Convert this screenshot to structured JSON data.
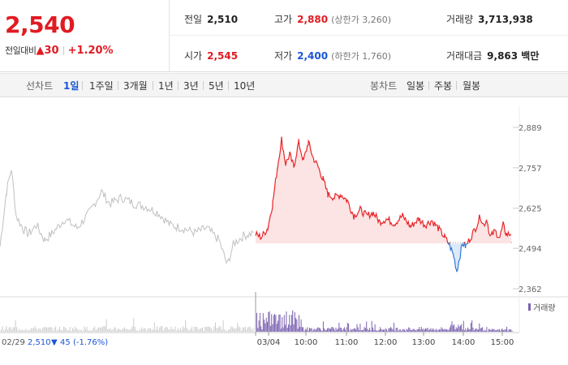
{
  "quote": {
    "current_price": "2,540",
    "change_label": "전일대비",
    "change_arrow": "▲",
    "change_amount": "30",
    "change_percent": "+1.20%"
  },
  "stats": {
    "prev_close": {
      "label": "전일",
      "value": "2,510"
    },
    "open": {
      "label": "시가",
      "value": "2,545"
    },
    "high": {
      "label": "고가",
      "value": "2,880",
      "sub_label": "(상한가",
      "sub_value": "3,260",
      "sub_close": ")"
    },
    "low": {
      "label": "저가",
      "value": "2,400",
      "sub_label": "(하한가",
      "sub_value": "1,760",
      "sub_close": ")"
    },
    "volume": {
      "label": "거래량",
      "value": "3,713,938"
    },
    "trade_value": {
      "label": "거래대금",
      "value": "9,863 백만"
    }
  },
  "tabs": {
    "line_label": "선차트",
    "line_periods": [
      "1일",
      "1주일",
      "3개월",
      "1년",
      "3년",
      "5년",
      "10년"
    ],
    "active_period": "1일",
    "candle_label": "봉차트",
    "candle_periods": [
      "일봉",
      "주봉",
      "월봉"
    ]
  },
  "chart_data": {
    "type": "line",
    "y_ticks": [
      "2,889",
      "2,757",
      "2,625",
      "2,494",
      "2,362"
    ],
    "ylim": [
      2362,
      2889
    ],
    "base_value": 2510,
    "x_tick_labels": [
      "03/04",
      "10:00",
      "11:00",
      "12:00",
      "13:00",
      "14:00",
      "15:00"
    ],
    "prev_day_footer": {
      "date": "02/29",
      "price": "2,510",
      "arrow": "▼",
      "change": "45",
      "pct": "(-1.76%)"
    },
    "volume_legend": "거래량",
    "colors": {
      "up": "#e8262a",
      "down": "#2f7ad6",
      "prev": "#c0c0c0",
      "fill_up": "#fde4e4",
      "fill_down": "#dce9f9",
      "volume": "#7b62b0",
      "volume_prev": "#cccccc"
    }
  }
}
